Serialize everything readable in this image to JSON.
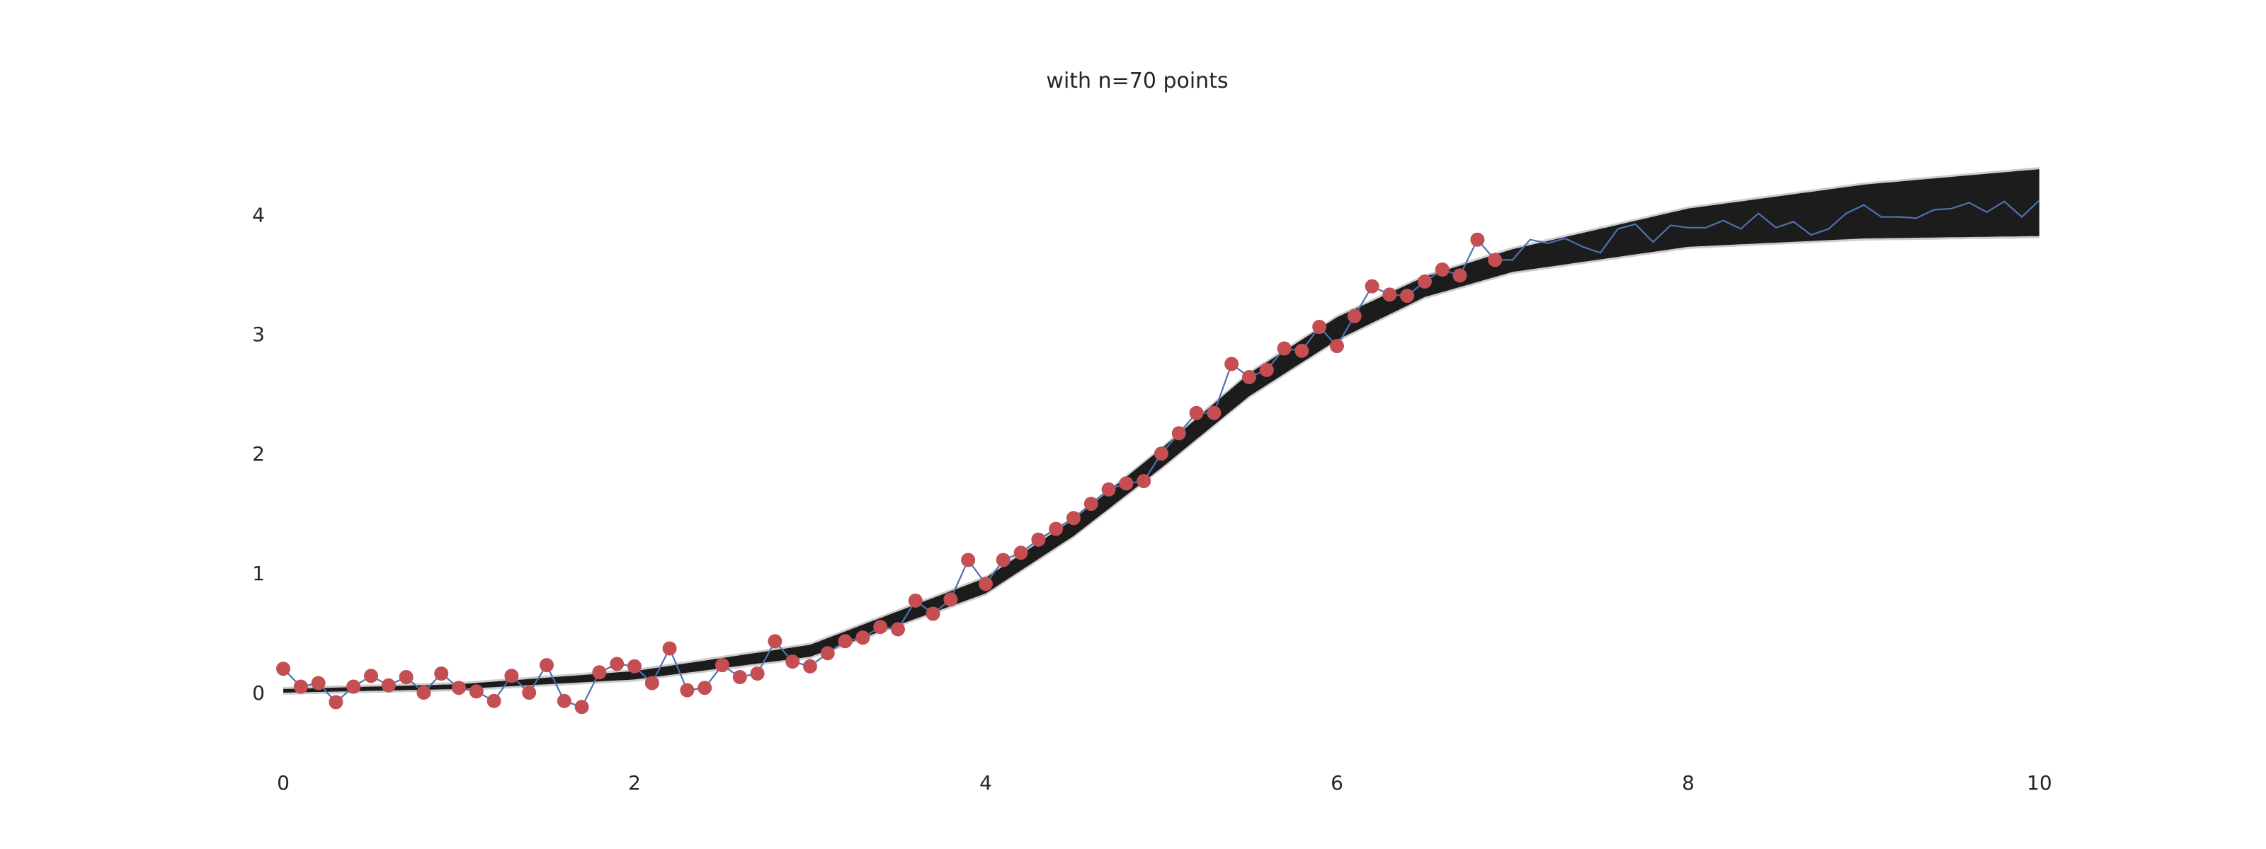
{
  "chart_data": {
    "type": "line",
    "title": "with n=70 points",
    "xlabel": "",
    "ylabel": "",
    "xlim": [
      0,
      10
    ],
    "ylim": [
      -0.45,
      4.7
    ],
    "grid": false,
    "x_ticks": [
      "0",
      "2",
      "4",
      "6",
      "8",
      "10"
    ],
    "y_ticks": [
      "0",
      "1",
      "2",
      "3",
      "4"
    ],
    "colors": {
      "band": "#1c1c1c",
      "band_edge": "#aaaaaa",
      "observed_line": "#4c72b0",
      "observed_points": "#c44e52",
      "text": "#262626"
    },
    "model_band": {
      "description_values": "posterior sigmoid curves",
      "x": [
        0,
        1,
        2,
        3,
        4,
        4.5,
        5,
        5.5,
        6,
        6.5,
        7,
        8,
        9,
        10
      ],
      "lower": [
        0.0,
        0.03,
        0.11,
        0.3,
        0.83,
        1.31,
        1.88,
        2.48,
        2.95,
        3.31,
        3.52,
        3.73,
        3.8,
        3.82
      ],
      "upper": [
        0.03,
        0.07,
        0.18,
        0.4,
        0.96,
        1.45,
        2.04,
        2.67,
        3.14,
        3.48,
        3.71,
        4.05,
        4.25,
        4.38
      ]
    },
    "observed_series": {
      "x": [
        0.0,
        0.1,
        0.2,
        0.3,
        0.4,
        0.5,
        0.6,
        0.7,
        0.8,
        0.9,
        1.0,
        1.1,
        1.2,
        1.3,
        1.4,
        1.5,
        1.6,
        1.7,
        1.8,
        1.9,
        2.0,
        2.1,
        2.2,
        2.3,
        2.4,
        2.5,
        2.6,
        2.7,
        2.8,
        2.9,
        3.0,
        3.1,
        3.2,
        3.3,
        3.4,
        3.5,
        3.6,
        3.7,
        3.8,
        3.9,
        4.0,
        4.1,
        4.2,
        4.3,
        4.4,
        4.5,
        4.6,
        4.7,
        4.8,
        4.9,
        5.0,
        5.1,
        5.2,
        5.3,
        5.4,
        5.5,
        5.6,
        5.7,
        5.8,
        5.9,
        6.0,
        6.1,
        6.2,
        6.3,
        6.4,
        6.5,
        6.6,
        6.7,
        6.8,
        6.9
      ],
      "y": [
        0.2,
        0.05,
        0.08,
        -0.08,
        0.05,
        0.14,
        0.06,
        0.13,
        0.0,
        0.16,
        0.04,
        0.01,
        -0.07,
        0.14,
        0.0,
        0.23,
        -0.07,
        -0.12,
        0.17,
        0.24,
        0.22,
        0.08,
        0.37,
        0.02,
        0.04,
        0.23,
        0.13,
        0.16,
        0.43,
        0.26,
        0.22,
        0.33,
        0.43,
        0.46,
        0.55,
        0.53,
        0.77,
        0.66,
        0.78,
        1.11,
        0.91,
        1.11,
        1.17,
        1.28,
        1.37,
        1.46,
        1.58,
        1.7,
        1.75,
        1.77,
        2.0,
        2.17,
        2.34,
        2.34,
        2.75,
        2.64,
        2.7,
        2.88,
        2.86,
        3.06,
        2.9,
        3.15,
        3.4,
        3.33,
        3.32,
        3.44,
        3.54,
        3.49,
        3.79,
        3.62
      ]
    },
    "extension_series": {
      "x": [
        7.0,
        7.1,
        7.2,
        7.3,
        7.4,
        7.5,
        7.6,
        7.7,
        7.8,
        7.9,
        8.0,
        8.1,
        8.2,
        8.3,
        8.4,
        8.5,
        8.6,
        8.7,
        8.8,
        8.9,
        9.0,
        9.1,
        9.2,
        9.3,
        9.4,
        9.5,
        9.6,
        9.7,
        9.8,
        9.9,
        10.0
      ],
      "y": [
        3.62,
        3.79,
        3.76,
        3.8,
        3.73,
        3.68,
        3.88,
        3.92,
        3.77,
        3.91,
        3.89,
        3.89,
        3.95,
        3.88,
        4.01,
        3.89,
        3.94,
        3.83,
        3.88,
        4.01,
        4.08,
        3.98,
        3.98,
        3.97,
        4.04,
        4.05,
        4.1,
        4.02,
        4.11,
        3.98,
        4.12
      ]
    }
  }
}
